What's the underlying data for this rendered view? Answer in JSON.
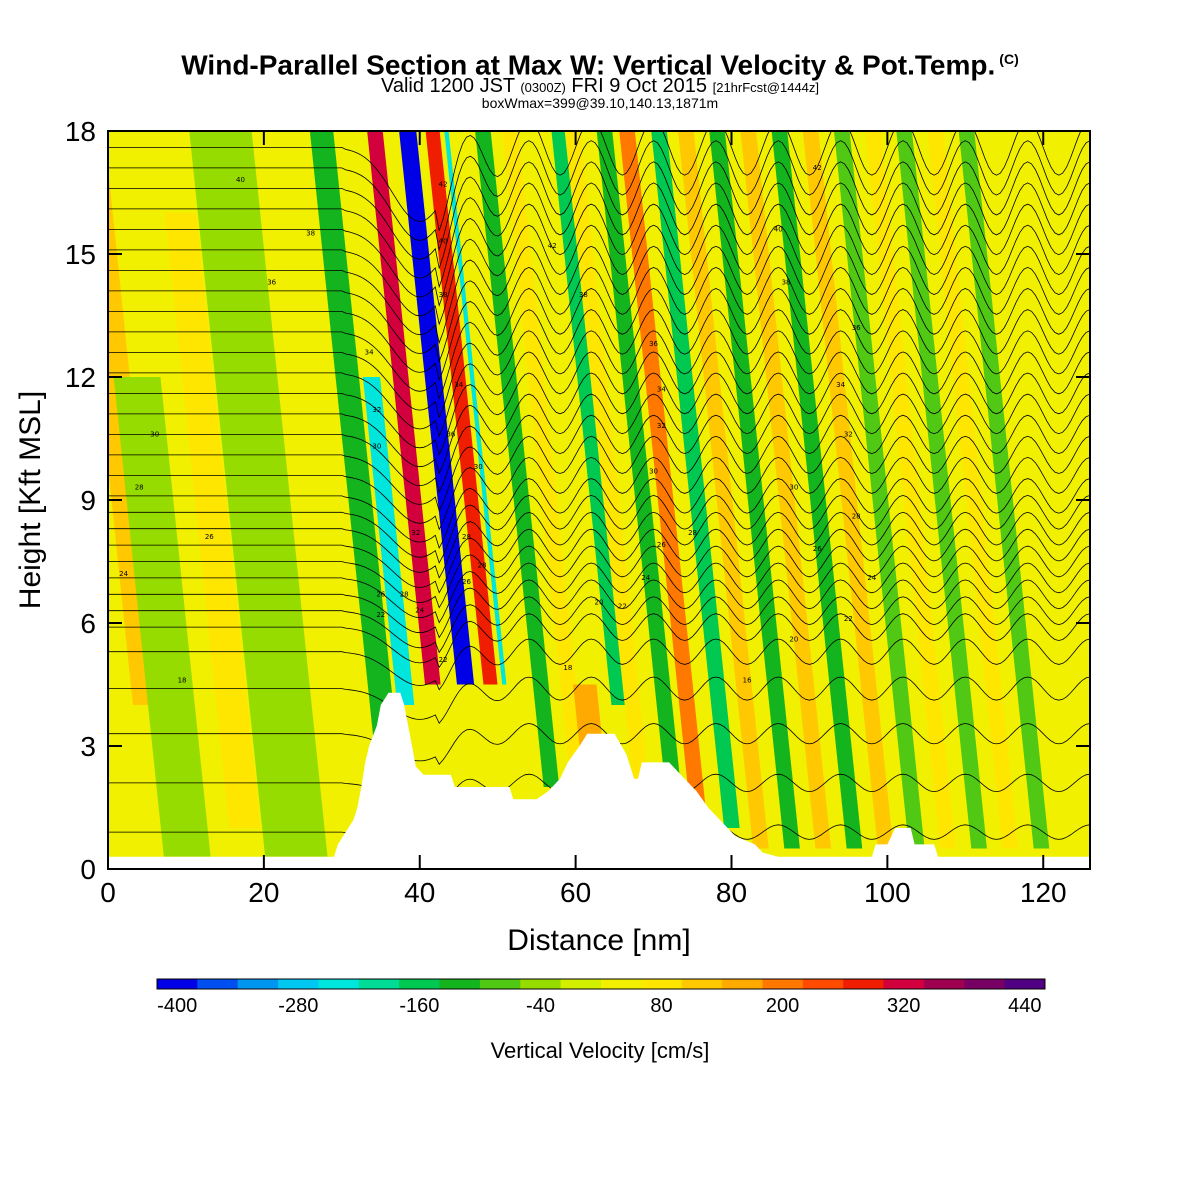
{
  "header": {
    "title": "Wind-Parallel Section at Max W: Vertical Velocity & Pot.Temp.",
    "title_mark": "(C)",
    "valid_prefix": "Valid 1200 JST",
    "valid_utc": "(0300Z)",
    "valid_date": "FRI 9 Oct 2015",
    "forecast": "[21hrFcst@1444z]",
    "box_info": "boxWmax=399@39.10,140.13,1871m"
  },
  "chart_data": {
    "type": "heatmap",
    "xlabel": "Distance [nm]",
    "ylabel": "Height [Kft MSL]",
    "xlim": [
      0,
      126
    ],
    "ylim": [
      0,
      18
    ],
    "x_ticks": [
      0,
      20,
      40,
      60,
      80,
      100,
      120
    ],
    "y_ticks": [
      0,
      3,
      6,
      9,
      12,
      15,
      18
    ],
    "colorbar": {
      "title": "Vertical Velocity [cm/s]",
      "min": -400,
      "max": 500,
      "step": 40,
      "tick_labels": [
        "-400",
        "-280",
        "-160",
        "-40",
        "80",
        "200",
        "320",
        "440"
      ],
      "tick_values": [
        -400,
        -280,
        -160,
        -40,
        80,
        200,
        320,
        440
      ],
      "colors": [
        "#0000e6",
        "#0050f0",
        "#0096f0",
        "#00c8f0",
        "#00e6dc",
        "#00dc96",
        "#00c850",
        "#14b41e",
        "#50c814",
        "#96dc00",
        "#d2f000",
        "#f0f000",
        "#ffe600",
        "#ffc800",
        "#ffaa00",
        "#ff7800",
        "#ff4b00",
        "#f01e00",
        "#d2003c",
        "#a00050",
        "#780064",
        "#500082"
      ]
    },
    "terrain_profile": [
      [
        0,
        0.3
      ],
      [
        29,
        0.3
      ],
      [
        29.5,
        0.6
      ],
      [
        30.5,
        0.9
      ],
      [
        31.5,
        1.2
      ],
      [
        32,
        1.5
      ],
      [
        32.5,
        2.0
      ],
      [
        33,
        2.6
      ],
      [
        33.5,
        3.0
      ],
      [
        34.5,
        3.5
      ],
      [
        35,
        4.0
      ],
      [
        36,
        4.3
      ],
      [
        37.5,
        4.3
      ],
      [
        38,
        4.0
      ],
      [
        39,
        3.0
      ],
      [
        39.5,
        2.5
      ],
      [
        40.5,
        2.3
      ],
      [
        44,
        2.3
      ],
      [
        44.5,
        2.0
      ],
      [
        51.5,
        2.0
      ],
      [
        52,
        1.7
      ],
      [
        55,
        1.7
      ],
      [
        56.5,
        1.9
      ],
      [
        58,
        2.2
      ],
      [
        59,
        2.6
      ],
      [
        60.5,
        3.0
      ],
      [
        61.5,
        3.3
      ],
      [
        65,
        3.3
      ],
      [
        66.5,
        2.8
      ],
      [
        67.5,
        2.2
      ],
      [
        68,
        2.2
      ],
      [
        68.5,
        2.6
      ],
      [
        72,
        2.6
      ],
      [
        73.5,
        2.3
      ],
      [
        75.5,
        1.9
      ],
      [
        77,
        1.5
      ],
      [
        79,
        1.1
      ],
      [
        80.5,
        0.8
      ],
      [
        83,
        0.6
      ],
      [
        84,
        0.4
      ],
      [
        86,
        0.3
      ],
      [
        98,
        0.3
      ],
      [
        98.5,
        0.6
      ],
      [
        100,
        0.6
      ],
      [
        101,
        1.0
      ],
      [
        103,
        1.0
      ],
      [
        103.5,
        0.6
      ],
      [
        106,
        0.6
      ],
      [
        106.5,
        0.3
      ],
      [
        126,
        0.3
      ]
    ],
    "vertical_velocity_bands": [
      {
        "x": 3,
        "width": 4,
        "w": 120,
        "zmin": 4.0,
        "zmax": 18
      },
      {
        "x": 10,
        "width": 6,
        "w": -40,
        "zmin": 0.3,
        "zmax": 12
      },
      {
        "x": 17,
        "width": 4,
        "w": 80,
        "zmin": 1,
        "zmax": 16
      },
      {
        "x": 24,
        "width": 8,
        "w": -40,
        "zmin": 0.3,
        "zmax": 18
      },
      {
        "x": 30,
        "width": 5,
        "w": 40,
        "zmin": 1,
        "zmax": 12
      },
      {
        "x": 34,
        "width": 3,
        "w": -120,
        "zmin": 3,
        "zmax": 18
      },
      {
        "x": 36,
        "width": 2.2,
        "w": -240,
        "zmin": 4,
        "zmax": 12
      },
      {
        "x": 39.2,
        "width": 2.0,
        "w": 320,
        "zmin": 4.5,
        "zmax": 18
      },
      {
        "x": 43.4,
        "width": 2.2,
        "w": -400,
        "zmin": 4.5,
        "zmax": 18
      },
      {
        "x": 46.6,
        "width": 1.8,
        "w": 280,
        "zmin": 4.5,
        "zmax": 18
      },
      {
        "x": 49.2,
        "width": 2.2,
        "w": -240,
        "zmin": 4.5,
        "zmax": 18
      },
      {
        "x": 52.4,
        "width": 2,
        "w": 40,
        "zmin": 2,
        "zmax": 18
      },
      {
        "x": 55.8,
        "width": 2,
        "w": -120,
        "zmin": 2,
        "zmax": 18
      },
      {
        "x": 59.3,
        "width": 2,
        "w": 80,
        "zmin": 2,
        "zmax": 18
      },
      {
        "x": 62,
        "width": 3,
        "w": 160,
        "zmin": 1.5,
        "zmax": 4.5
      },
      {
        "x": 63.4,
        "width": 2,
        "w": -160,
        "zmin": 4,
        "zmax": 18
      },
      {
        "x": 67.3,
        "width": 2,
        "w": 80,
        "zmin": 2,
        "zmax": 18
      },
      {
        "x": 71.4,
        "width": 2,
        "w": -120,
        "zmin": 2,
        "zmax": 18
      },
      {
        "x": 75.4,
        "width": 2,
        "w": 200,
        "zmin": 1,
        "zmax": 18
      },
      {
        "x": 79.5,
        "width": 2,
        "w": -160,
        "zmin": 1,
        "zmax": 18
      },
      {
        "x": 83.5,
        "width": 2,
        "w": 120,
        "zmin": 0.5,
        "zmax": 18
      },
      {
        "x": 87.5,
        "width": 2,
        "w": -120,
        "zmin": 0.5,
        "zmax": 18
      },
      {
        "x": 91.5,
        "width": 2,
        "w": 120,
        "zmin": 0.5,
        "zmax": 18
      },
      {
        "x": 95.5,
        "width": 2,
        "w": -120,
        "zmin": 0.5,
        "zmax": 18
      },
      {
        "x": 99.5,
        "width": 2,
        "w": 120,
        "zmin": 0.5,
        "zmax": 18
      },
      {
        "x": 103.5,
        "width": 2,
        "w": -80,
        "zmin": 0.5,
        "zmax": 18
      },
      {
        "x": 107.5,
        "width": 2,
        "w": 80,
        "zmin": 0.5,
        "zmax": 18
      },
      {
        "x": 111.5,
        "width": 2,
        "w": -80,
        "zmin": 0.5,
        "zmax": 18
      },
      {
        "x": 115.5,
        "width": 2,
        "w": 80,
        "zmin": 0.5,
        "zmax": 18
      },
      {
        "x": 119.5,
        "width": 2,
        "w": -80,
        "zmin": 0.5,
        "zmax": 18
      },
      {
        "x": 123.5,
        "width": 2,
        "w": 40,
        "zmin": 0.5,
        "zmax": 18
      }
    ],
    "background_w": 40,
    "theta_contours": {
      "base_heights_kft": [
        0.9,
        2.1,
        3.3,
        4.4,
        5.3,
        5.9,
        6.3,
        6.7,
        7.1,
        7.5,
        7.9,
        8.3,
        8.7,
        9.1,
        9.6,
        10.1,
        10.6,
        11.1,
        11.6,
        12.1,
        12.6,
        13.1,
        13.6,
        14.1,
        14.6,
        15.1,
        15.6,
        16.1,
        16.6,
        17.1,
        17.6
      ]
    },
    "contour_labels": [
      {
        "text": "40",
        "x": 17,
        "z": 16.8
      },
      {
        "text": "38",
        "x": 26,
        "z": 15.5
      },
      {
        "text": "36",
        "x": 21,
        "z": 14.3
      },
      {
        "text": "30",
        "x": 6,
        "z": 10.6
      },
      {
        "text": "28",
        "x": 4,
        "z": 9.3
      },
      {
        "text": "26",
        "x": 13,
        "z": 8.1
      },
      {
        "text": "24",
        "x": 2,
        "z": 7.2
      },
      {
        "text": "18",
        "x": 9.5,
        "z": 4.6
      },
      {
        "text": "34",
        "x": 33.5,
        "z": 12.6
      },
      {
        "text": "32",
        "x": 34.5,
        "z": 11.2
      },
      {
        "text": "30",
        "x": 34.5,
        "z": 10.3
      },
      {
        "text": "26",
        "x": 35,
        "z": 6.7
      },
      {
        "text": "22",
        "x": 35,
        "z": 6.2
      },
      {
        "text": "28",
        "x": 38,
        "z": 6.7
      },
      {
        "text": "32",
        "x": 39.5,
        "z": 8.2
      },
      {
        "text": "24",
        "x": 40,
        "z": 6.3
      },
      {
        "text": "22",
        "x": 43,
        "z": 5.1
      },
      {
        "text": "34",
        "x": 45,
        "z": 11.8
      },
      {
        "text": "28",
        "x": 46,
        "z": 8.1
      },
      {
        "text": "26",
        "x": 46,
        "z": 7.0
      },
      {
        "text": "30",
        "x": 47.5,
        "z": 9.8
      },
      {
        "text": "28",
        "x": 48,
        "z": 7.4
      },
      {
        "text": "42",
        "x": 57,
        "z": 15.2
      },
      {
        "text": "38",
        "x": 61,
        "z": 14.0
      },
      {
        "text": "36",
        "x": 70,
        "z": 12.8
      },
      {
        "text": "34",
        "x": 71,
        "z": 11.7
      },
      {
        "text": "32",
        "x": 71,
        "z": 10.8
      },
      {
        "text": "30",
        "x": 70,
        "z": 9.7
      },
      {
        "text": "28",
        "x": 75,
        "z": 8.2
      },
      {
        "text": "26",
        "x": 71,
        "z": 7.9
      },
      {
        "text": "24",
        "x": 69,
        "z": 7.1
      },
      {
        "text": "22",
        "x": 66,
        "z": 6.4
      },
      {
        "text": "20",
        "x": 63,
        "z": 6.5
      },
      {
        "text": "18",
        "x": 59,
        "z": 4.9
      },
      {
        "text": "16",
        "x": 82,
        "z": 4.6
      },
      {
        "text": "40",
        "x": 86,
        "z": 15.6
      },
      {
        "text": "42",
        "x": 91,
        "z": 17.1
      },
      {
        "text": "38",
        "x": 87,
        "z": 14.3
      },
      {
        "text": "36",
        "x": 96,
        "z": 13.2
      },
      {
        "text": "34",
        "x": 94,
        "z": 11.8
      },
      {
        "text": "32",
        "x": 95,
        "z": 10.6
      },
      {
        "text": "30",
        "x": 88,
        "z": 9.3
      },
      {
        "text": "28",
        "x": 96,
        "z": 8.6
      },
      {
        "text": "26",
        "x": 91,
        "z": 7.8
      },
      {
        "text": "24",
        "x": 98,
        "z": 7.1
      },
      {
        "text": "22",
        "x": 95,
        "z": 6.1
      },
      {
        "text": "20",
        "x": 88,
        "z": 5.6
      },
      {
        "text": "42",
        "x": 43,
        "z": 16.7
      },
      {
        "text": "40",
        "x": 43,
        "z": 15.3
      },
      {
        "text": "38",
        "x": 43,
        "z": 14.0
      },
      {
        "text": "36",
        "x": 44,
        "z": 10.6
      }
    ]
  }
}
